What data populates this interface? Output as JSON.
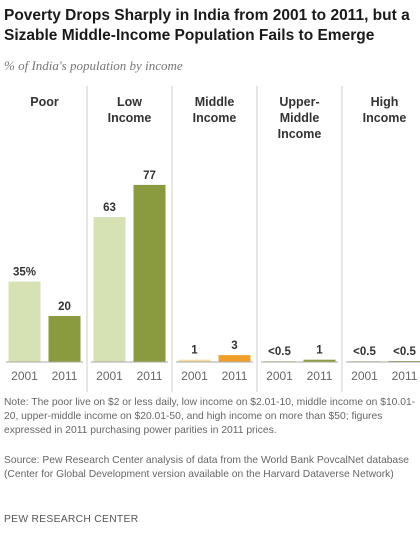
{
  "title": "Poverty Drops Sharply in India from 2001 to 2011, but a Sizable Middle-Income Population Fails to Emerge",
  "subtitle": "% of India's population by income",
  "note": "Note: The poor live on $2 or less daily, low income on $2.01-10, middle income on $10.01-20, upper-middle income on $20.01-50, and high income on more than $50; figures expressed in 2011 purchasing power parities in 2011 prices.",
  "source": "Source: Pew Research Center analysis of data from the World Bank PovcalNet database (Center for Global Development version available on the Harvard Dataverse Network)",
  "credit": "PEW RESEARCH CENTER",
  "colors": {
    "light": "#d6e2b3",
    "dark": "#8a9a3e",
    "middle_light": "#f6dca2",
    "middle_dark": "#f0a028",
    "divider": "#cccccc",
    "baseline": "#aaaaaa"
  },
  "chart_data": {
    "type": "bar",
    "x": [
      "2001",
      "2011"
    ],
    "groups": [
      {
        "name": [
          "Poor"
        ],
        "values": [
          35,
          20
        ],
        "labels": [
          "35%",
          "20"
        ],
        "colors": [
          "light",
          "dark"
        ]
      },
      {
        "name": [
          "Low",
          "Income"
        ],
        "values": [
          63,
          77
        ],
        "labels": [
          "63",
          "77"
        ],
        "colors": [
          "light",
          "dark"
        ]
      },
      {
        "name": [
          "Middle",
          "Income"
        ],
        "values": [
          1,
          3
        ],
        "labels": [
          "1",
          "3"
        ],
        "colors": [
          "middle_light",
          "middle_dark"
        ]
      },
      {
        "name": [
          "Upper-",
          "Middle",
          "Income"
        ],
        "values": [
          0.3,
          1
        ],
        "labels": [
          "<0.5",
          "1"
        ],
        "colors": [
          "light",
          "dark"
        ]
      },
      {
        "name": [
          "High",
          "Income"
        ],
        "values": [
          0.2,
          0.2
        ],
        "labels": [
          "<0.5",
          "<0.5"
        ],
        "colors": [
          "light",
          "dark"
        ]
      }
    ],
    "ylim": [
      0,
      100
    ],
    "grid": false,
    "legend": "none"
  }
}
